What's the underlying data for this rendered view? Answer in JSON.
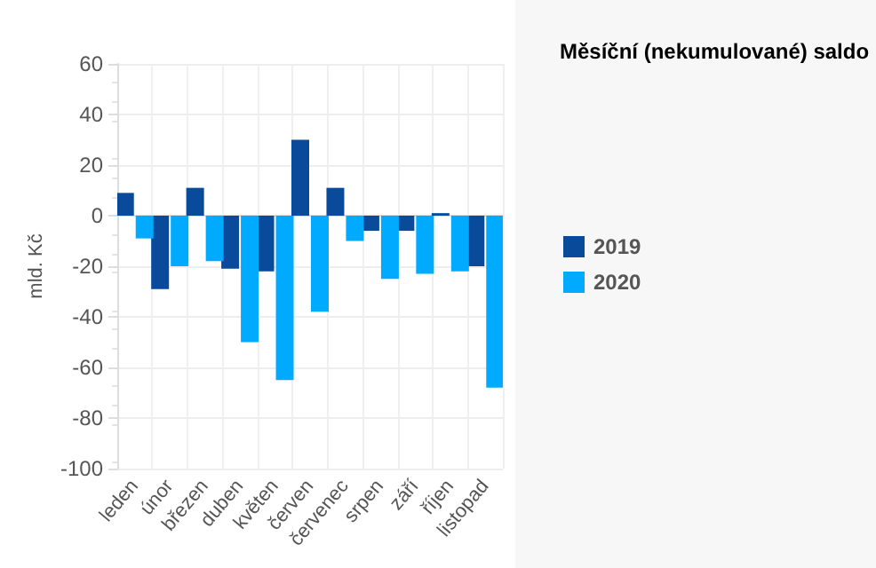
{
  "chart_data": {
    "type": "bar",
    "title": "Měsíční (nekumulované) saldo",
    "ylabel": "mld. Kč",
    "categories": [
      "leden",
      "únor",
      "březen",
      "duben",
      "květen",
      "červen",
      "červenec",
      "srpen",
      "září",
      "říjen",
      "listopad"
    ],
    "series": [
      {
        "name": "2019",
        "color": "#0a4a9a",
        "values": [
          9,
          -29,
          11,
          -21,
          -22,
          30,
          11,
          -6,
          -6,
          1,
          -20
        ]
      },
      {
        "name": "2020",
        "color": "#00aaff",
        "values": [
          -9,
          -20,
          -18,
          -50,
          -65,
          -38,
          -10,
          -25,
          -23,
          -22,
          -68
        ]
      }
    ],
    "ylim": [
      -100,
      60
    ],
    "yticks": [
      -100,
      -80,
      -60,
      -40,
      -20,
      0,
      20,
      40,
      60
    ],
    "grid": true,
    "legend": "right"
  }
}
